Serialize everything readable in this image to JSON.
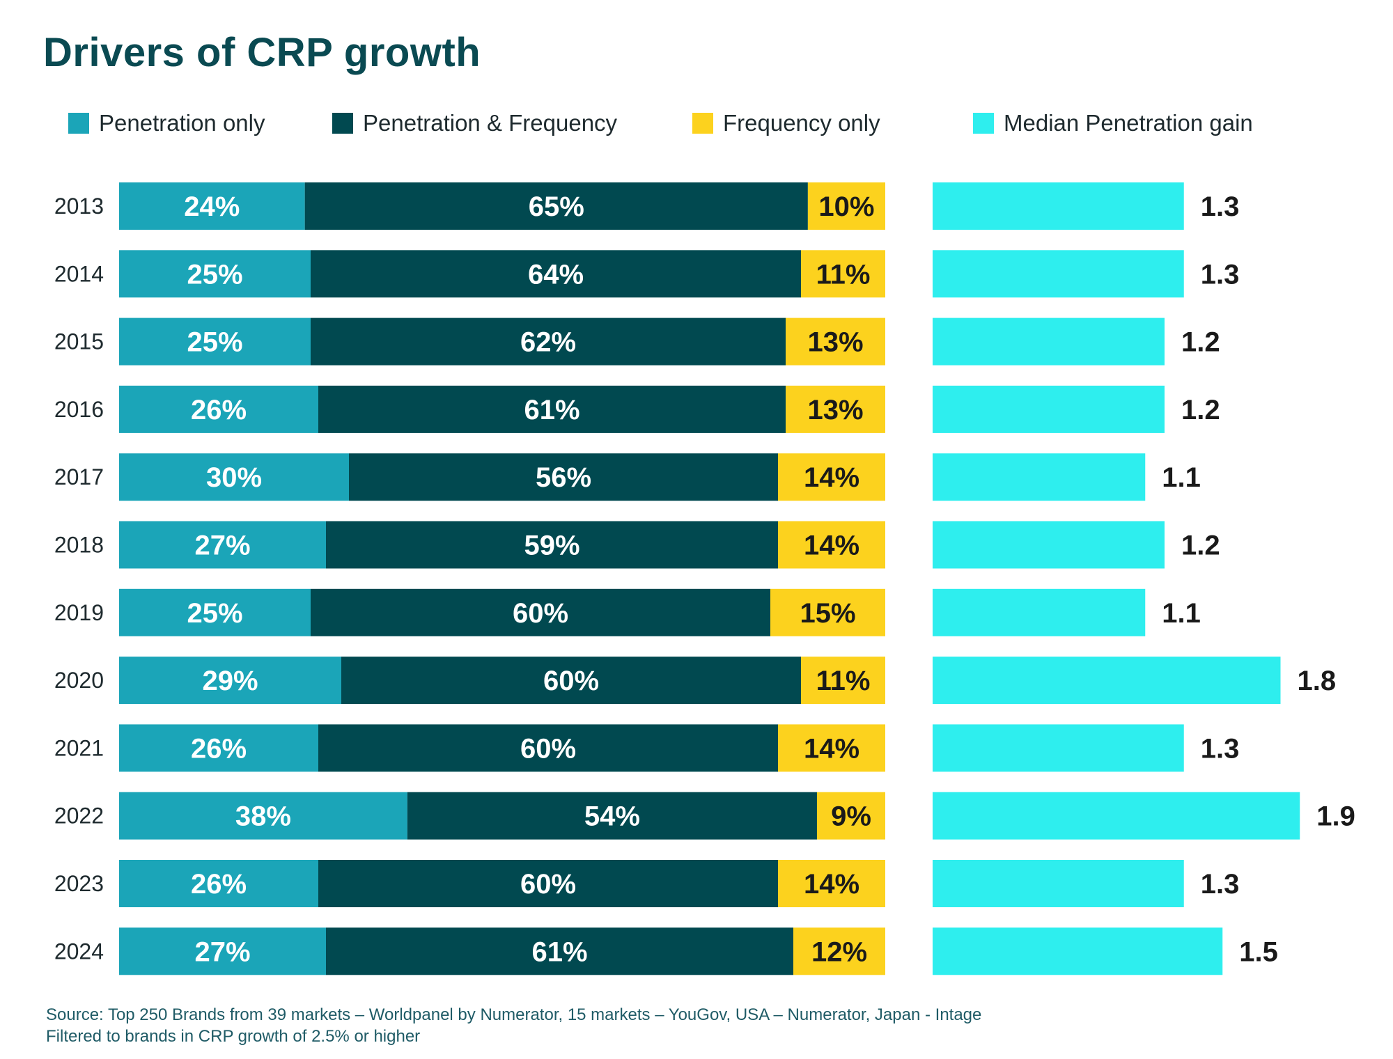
{
  "title": "Drivers of CRP growth",
  "legend": [
    {
      "label": "Penetration only",
      "color": "#1ba5b8"
    },
    {
      "label": "Penetration & Frequency",
      "color": "#014950"
    },
    {
      "label": "Frequency only",
      "color": "#fcd21e"
    },
    {
      "label": "Median Penetration gain",
      "color": "#2eeeee"
    }
  ],
  "chart_data": [
    {
      "type": "bar",
      "orientation": "horizontal",
      "stacked": true,
      "normalized_percent": true,
      "categories": [
        "2013",
        "2014",
        "2015",
        "2016",
        "2017",
        "2018",
        "2019",
        "2020",
        "2021",
        "2022",
        "2023",
        "2024"
      ],
      "series": [
        {
          "name": "Penetration only",
          "color": "#1ba5b8",
          "label_color": "#ffffff",
          "values": [
            24,
            25,
            25,
            26,
            30,
            27,
            25,
            29,
            26,
            38,
            26,
            27
          ],
          "labels": [
            "24%",
            "25%",
            "25%",
            "26%",
            "30%",
            "27%",
            "25%",
            "29%",
            "26%",
            "38%",
            "26%",
            "27%"
          ]
        },
        {
          "name": "Penetration & Frequency",
          "color": "#014950",
          "label_color": "#ffffff",
          "values": [
            65,
            64,
            62,
            61,
            56,
            59,
            60,
            60,
            60,
            54,
            60,
            61
          ],
          "labels": [
            "65%",
            "64%",
            "62%",
            "61%",
            "56%",
            "59%",
            "60%",
            "60%",
            "60%",
            "54%",
            "60%",
            "61%"
          ]
        },
        {
          "name": "Frequency only",
          "color": "#fcd21e",
          "label_color": "#1a1a1a",
          "values": [
            10,
            11,
            13,
            13,
            14,
            14,
            15,
            11,
            14,
            9,
            14,
            12
          ],
          "labels": [
            "10%",
            "11%",
            "13%",
            "13%",
            "14%",
            "14%",
            "15%",
            "11%",
            "14%",
            "9%",
            "14%",
            "12%"
          ]
        }
      ]
    },
    {
      "type": "bar",
      "orientation": "horizontal",
      "categories": [
        "2013",
        "2014",
        "2015",
        "2016",
        "2017",
        "2018",
        "2019",
        "2020",
        "2021",
        "2022",
        "2023",
        "2024"
      ],
      "series": [
        {
          "name": "Median Penetration gain",
          "color": "#2eeeee",
          "values": [
            1.3,
            1.3,
            1.2,
            1.2,
            1.1,
            1.2,
            1.1,
            1.8,
            1.3,
            1.9,
            1.3,
            1.5
          ],
          "labels": [
            "1.3",
            "1.3",
            "1.2",
            "1.2",
            "1.1",
            "1.2",
            "1.1",
            "1.8",
            "1.3",
            "1.9",
            "1.3",
            "1.5"
          ]
        }
      ]
    }
  ],
  "source": {
    "line1": "Source: Top 250 Brands from 39 markets – Worldpanel by Numerator, 15 markets – YouGov, USA – Numerator, Japan - Intage",
    "line2": "Filtered to brands in CRP growth of 2.5% or higher"
  }
}
